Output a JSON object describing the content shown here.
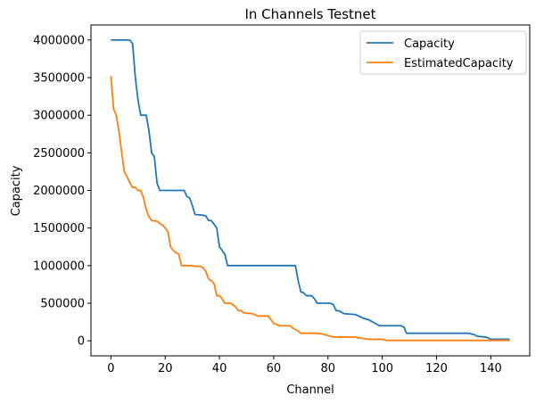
{
  "chart_data": {
    "type": "line",
    "title": "In Channels Testnet",
    "xlabel": "Channel",
    "ylabel": "Capacity",
    "xlim": [
      -7.35,
      154.35
    ],
    "ylim": [
      -200000,
      4200000
    ],
    "xticks": [
      0,
      20,
      40,
      60,
      80,
      100,
      120,
      140
    ],
    "yticks": [
      0,
      500000,
      1000000,
      1500000,
      2000000,
      2500000,
      3000000,
      3500000,
      4000000
    ],
    "grid": false,
    "legend_position": "top-right",
    "series": [
      {
        "name": "Capacity",
        "color": "#1f77b4",
        "points": [
          [
            0,
            4000000
          ],
          [
            7,
            4000000
          ],
          [
            8,
            3950000
          ],
          [
            9,
            3500000
          ],
          [
            10,
            3200000
          ],
          [
            11,
            3000000
          ],
          [
            13,
            3000000
          ],
          [
            14,
            2800000
          ],
          [
            15,
            2500000
          ],
          [
            16,
            2450000
          ],
          [
            17,
            2100000
          ],
          [
            18,
            2000000
          ],
          [
            27,
            2000000
          ],
          [
            28,
            1920000
          ],
          [
            29,
            1900000
          ],
          [
            30,
            1800000
          ],
          [
            31,
            1680000
          ],
          [
            34,
            1670000
          ],
          [
            35,
            1660000
          ],
          [
            36,
            1600000
          ],
          [
            37,
            1600000
          ],
          [
            38,
            1550000
          ],
          [
            39,
            1500000
          ],
          [
            40,
            1250000
          ],
          [
            41,
            1200000
          ],
          [
            42,
            1150000
          ],
          [
            43,
            1000000
          ],
          [
            68,
            1000000
          ],
          [
            69,
            800000
          ],
          [
            70,
            650000
          ],
          [
            71,
            640000
          ],
          [
            72,
            600000
          ],
          [
            74,
            600000
          ],
          [
            75,
            560000
          ],
          [
            76,
            500000
          ],
          [
            81,
            500000
          ],
          [
            82,
            480000
          ],
          [
            83,
            400000
          ],
          [
            84,
            400000
          ],
          [
            85,
            380000
          ],
          [
            86,
            360000
          ],
          [
            90,
            350000
          ],
          [
            92,
            320000
          ],
          [
            93,
            300000
          ],
          [
            95,
            280000
          ],
          [
            96,
            260000
          ],
          [
            97,
            240000
          ],
          [
            98,
            220000
          ],
          [
            99,
            200000
          ],
          [
            107,
            200000
          ],
          [
            108,
            180000
          ],
          [
            109,
            100000
          ],
          [
            132,
            100000
          ],
          [
            134,
            80000
          ],
          [
            135,
            60000
          ],
          [
            138,
            50000
          ],
          [
            139,
            40000
          ],
          [
            140,
            20000
          ],
          [
            147,
            20000
          ]
        ]
      },
      {
        "name": "EstimatedCapacity",
        "color": "#ff7f0e",
        "points": [
          [
            0,
            3520000
          ],
          [
            1,
            3080000
          ],
          [
            2,
            3000000
          ],
          [
            3,
            2780000
          ],
          [
            4,
            2500000
          ],
          [
            5,
            2240000
          ],
          [
            6,
            2180000
          ],
          [
            7,
            2100000
          ],
          [
            8,
            2040000
          ],
          [
            9,
            2040000
          ],
          [
            10,
            2000000
          ],
          [
            11,
            2000000
          ],
          [
            12,
            1900000
          ],
          [
            13,
            1750000
          ],
          [
            14,
            1650000
          ],
          [
            15,
            1600000
          ],
          [
            17,
            1590000
          ],
          [
            18,
            1560000
          ],
          [
            19,
            1540000
          ],
          [
            20,
            1500000
          ],
          [
            21,
            1450000
          ],
          [
            22,
            1250000
          ],
          [
            23,
            1200000
          ],
          [
            24,
            1170000
          ],
          [
            25,
            1150000
          ],
          [
            26,
            1000000
          ],
          [
            30,
            1000000
          ],
          [
            31,
            990000
          ],
          [
            33,
            990000
          ],
          [
            34,
            970000
          ],
          [
            35,
            920000
          ],
          [
            36,
            820000
          ],
          [
            37,
            800000
          ],
          [
            38,
            760000
          ],
          [
            39,
            600000
          ],
          [
            40,
            600000
          ],
          [
            41,
            560000
          ],
          [
            42,
            500000
          ],
          [
            44,
            500000
          ],
          [
            45,
            480000
          ],
          [
            46,
            450000
          ],
          [
            47,
            400000
          ],
          [
            48,
            400000
          ],
          [
            49,
            370000
          ],
          [
            52,
            360000
          ],
          [
            53,
            350000
          ],
          [
            54,
            330000
          ],
          [
            58,
            330000
          ],
          [
            59,
            280000
          ],
          [
            60,
            230000
          ],
          [
            61,
            220000
          ],
          [
            62,
            200000
          ],
          [
            66,
            200000
          ],
          [
            67,
            170000
          ],
          [
            68,
            150000
          ],
          [
            69,
            130000
          ],
          [
            70,
            100000
          ],
          [
            76,
            100000
          ],
          [
            78,
            90000
          ],
          [
            79,
            80000
          ],
          [
            80,
            70000
          ],
          [
            81,
            60000
          ],
          [
            82,
            50000
          ],
          [
            90,
            50000
          ],
          [
            91,
            40000
          ],
          [
            93,
            30000
          ],
          [
            95,
            20000
          ],
          [
            100,
            20000
          ],
          [
            101,
            10000
          ],
          [
            102,
            5000
          ],
          [
            147,
            5000
          ]
        ]
      }
    ]
  }
}
